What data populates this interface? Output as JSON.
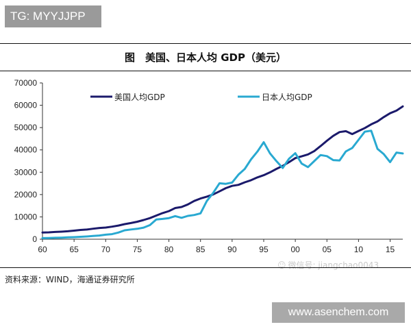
{
  "watermark_top": "TG: MYYJJPP",
  "watermark_site": "www.asenchem.com",
  "watermark_wechat": "微信号: jiangchao0043",
  "wechat_icon": "wechat-icon",
  "source": "资料来源：WIND，海通证券研究所",
  "colors": {
    "us": "#1b1a6b",
    "japan": "#29a9d1",
    "axis": "#333333",
    "rule": "#111111"
  },
  "chart_data": {
    "type": "line",
    "title": "图　美国、日本人均 GDP（美元）",
    "xlabel": "",
    "ylabel": "",
    "x_ticks": [
      "60",
      "65",
      "70",
      "75",
      "80",
      "85",
      "90",
      "95",
      "00",
      "05",
      "10",
      "15"
    ],
    "y_ticks": [
      "0",
      "10000",
      "20000",
      "30000",
      "40000",
      "50000",
      "60000",
      "70000"
    ],
    "ylim": [
      0,
      70000
    ],
    "xlim": [
      1960,
      2017
    ],
    "grid": false,
    "legend": "top",
    "series": [
      {
        "name": "美国人均GDP",
        "color": "#1b1a6b",
        "x": [
          1960,
          1961,
          1962,
          1963,
          1964,
          1965,
          1966,
          1967,
          1968,
          1969,
          1970,
          1971,
          1972,
          1973,
          1974,
          1975,
          1976,
          1977,
          1978,
          1979,
          1980,
          1981,
          1982,
          1983,
          1984,
          1985,
          1986,
          1987,
          1988,
          1989,
          1990,
          1991,
          1992,
          1993,
          1994,
          1995,
          1996,
          1997,
          1998,
          1999,
          2000,
          2001,
          2002,
          2003,
          2004,
          2005,
          2006,
          2007,
          2008,
          2009,
          2010,
          2011,
          2012,
          2013,
          2014,
          2015,
          2016,
          2017
        ],
        "values": [
          3000,
          3070,
          3250,
          3370,
          3570,
          3830,
          4150,
          4340,
          4700,
          5030,
          5230,
          5610,
          6110,
          6740,
          7240,
          7820,
          8610,
          9470,
          10590,
          11690,
          12580,
          13980,
          14430,
          15560,
          17130,
          18240,
          19070,
          20040,
          21420,
          22860,
          23890,
          24340,
          25470,
          26440,
          27690,
          28690,
          29970,
          31460,
          32850,
          34510,
          36330,
          37130,
          37970,
          39490,
          41720,
          44120,
          46300,
          47980,
          48400,
          47100,
          48470,
          49790,
          51450,
          52780,
          54700,
          56440,
          57590,
          59500
        ]
      },
      {
        "name": "日本人均GDP",
        "color": "#29a9d1",
        "x": [
          1960,
          1961,
          1962,
          1963,
          1964,
          1965,
          1966,
          1967,
          1968,
          1969,
          1970,
          1971,
          1972,
          1973,
          1974,
          1975,
          1976,
          1977,
          1978,
          1979,
          1980,
          1981,
          1982,
          1983,
          1984,
          1985,
          1986,
          1987,
          1988,
          1989,
          1990,
          1991,
          1992,
          1993,
          1994,
          1995,
          1996,
          1997,
          1998,
          1999,
          2000,
          2001,
          2002,
          2003,
          2004,
          2005,
          2006,
          2007,
          2008,
          2009,
          2010,
          2011,
          2012,
          2013,
          2014,
          2015,
          2016,
          2017
        ],
        "values": [
          480,
          560,
          640,
          720,
          840,
          920,
          1060,
          1230,
          1450,
          1670,
          2040,
          2270,
          2970,
          3990,
          4350,
          4660,
          5200,
          6330,
          8820,
          9100,
          9460,
          10360,
          9580,
          10430,
          10850,
          11580,
          17110,
          20750,
          25060,
          24810,
          25360,
          28930,
          31470,
          35770,
          39270,
          43440,
          38440,
          35020,
          31900,
          36030,
          38530,
          33850,
          32290,
          35000,
          37690,
          37210,
          35430,
          35280,
          39340,
          40850,
          44510,
          48170,
          48600,
          40450,
          38100,
          34520,
          38800,
          38400
        ]
      }
    ]
  }
}
